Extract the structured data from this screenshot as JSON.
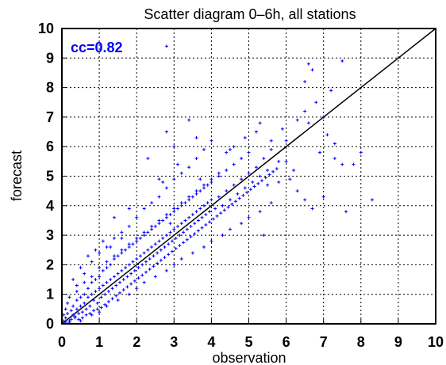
{
  "chart_data": {
    "type": "scatter",
    "title": "Scatter diagram 0–6h, all stations",
    "xlabel": "observation",
    "ylabel": "forecast",
    "xlim": [
      0,
      10
    ],
    "ylim": [
      0,
      10
    ],
    "xticks": [
      "0",
      "1",
      "2",
      "3",
      "4",
      "5",
      "6",
      "7",
      "8",
      "9",
      "10"
    ],
    "yticks": [
      "0",
      "1",
      "2",
      "3",
      "4",
      "5",
      "6",
      "7",
      "8",
      "9",
      "10"
    ],
    "grid": true,
    "reference_line": {
      "from": [
        0,
        0
      ],
      "to": [
        10,
        10
      ]
    },
    "annotation": {
      "text": "cc=0.82",
      "position": "top-left",
      "color": "#0000ff"
    },
    "point_color": "#0000ff",
    "marker": "plus",
    "series": [
      {
        "points": [
          [
            0.1,
            0.2
          ],
          [
            0.15,
            0.35
          ],
          [
            0.2,
            0.1
          ],
          [
            0.25,
            0.45
          ],
          [
            0.3,
            0.3
          ],
          [
            0.3,
            0.6
          ],
          [
            0.35,
            0.2
          ],
          [
            0.4,
            0.5
          ],
          [
            0.4,
            0.8
          ],
          [
            0.45,
            0.35
          ],
          [
            0.5,
            0.6
          ],
          [
            0.5,
            0.9
          ],
          [
            0.55,
            0.4
          ],
          [
            0.6,
            0.7
          ],
          [
            0.6,
            1.0
          ],
          [
            0.65,
            0.5
          ],
          [
            0.7,
            0.9
          ],
          [
            0.7,
            1.2
          ],
          [
            0.75,
            0.6
          ],
          [
            0.8,
            1.0
          ],
          [
            0.8,
            1.4
          ],
          [
            0.85,
            0.8
          ],
          [
            0.9,
            1.1
          ],
          [
            0.9,
            1.5
          ],
          [
            0.95,
            0.7
          ],
          [
            1.0,
            1.2
          ],
          [
            1.0,
            1.6
          ],
          [
            1.05,
            0.9
          ],
          [
            1.1,
            1.3
          ],
          [
            1.1,
            1.8
          ],
          [
            1.15,
            1.0
          ],
          [
            1.2,
            1.4
          ],
          [
            1.2,
            1.9
          ],
          [
            1.25,
            1.1
          ],
          [
            1.3,
            1.5
          ],
          [
            1.3,
            2.0
          ],
          [
            1.35,
            1.2
          ],
          [
            1.4,
            1.6
          ],
          [
            1.4,
            2.2
          ],
          [
            1.45,
            1.3
          ],
          [
            1.5,
            1.7
          ],
          [
            1.5,
            2.3
          ],
          [
            1.55,
            1.4
          ],
          [
            1.6,
            1.8
          ],
          [
            1.6,
            2.4
          ],
          [
            1.65,
            1.5
          ],
          [
            1.7,
            1.9
          ],
          [
            1.7,
            2.5
          ],
          [
            1.75,
            1.6
          ],
          [
            1.8,
            2.0
          ],
          [
            1.8,
            2.6
          ],
          [
            1.85,
            1.7
          ],
          [
            1.9,
            2.1
          ],
          [
            1.9,
            2.7
          ],
          [
            1.95,
            1.8
          ],
          [
            2.0,
            2.2
          ],
          [
            2.0,
            2.8
          ],
          [
            2.05,
            1.9
          ],
          [
            2.1,
            2.3
          ],
          [
            2.1,
            2.9
          ],
          [
            2.15,
            2.0
          ],
          [
            2.2,
            2.4
          ],
          [
            2.2,
            3.0
          ],
          [
            2.25,
            2.1
          ],
          [
            2.3,
            2.5
          ],
          [
            2.3,
            3.1
          ],
          [
            2.35,
            2.2
          ],
          [
            2.4,
            2.6
          ],
          [
            2.4,
            3.2
          ],
          [
            2.45,
            2.3
          ],
          [
            2.5,
            2.7
          ],
          [
            2.5,
            3.3
          ],
          [
            2.55,
            2.4
          ],
          [
            2.6,
            2.8
          ],
          [
            2.6,
            3.4
          ],
          [
            2.65,
            2.5
          ],
          [
            2.7,
            2.9
          ],
          [
            2.7,
            3.5
          ],
          [
            2.75,
            2.6
          ],
          [
            2.8,
            3.0
          ],
          [
            2.8,
            3.6
          ],
          [
            2.85,
            2.7
          ],
          [
            2.9,
            3.1
          ],
          [
            2.9,
            3.7
          ],
          [
            2.95,
            2.8
          ],
          [
            3.0,
            3.2
          ],
          [
            3.0,
            3.8
          ],
          [
            3.05,
            2.9
          ],
          [
            3.1,
            3.3
          ],
          [
            3.1,
            3.9
          ],
          [
            3.15,
            3.0
          ],
          [
            3.2,
            3.4
          ],
          [
            3.2,
            4.0
          ],
          [
            3.25,
            3.1
          ],
          [
            3.3,
            3.5
          ],
          [
            3.3,
            4.1
          ],
          [
            3.35,
            3.2
          ],
          [
            3.4,
            3.6
          ],
          [
            3.4,
            4.2
          ],
          [
            3.45,
            3.3
          ],
          [
            3.5,
            3.7
          ],
          [
            3.5,
            4.3
          ],
          [
            3.55,
            3.4
          ],
          [
            3.6,
            3.8
          ],
          [
            3.6,
            4.4
          ],
          [
            3.65,
            3.5
          ],
          [
            3.7,
            3.9
          ],
          [
            3.7,
            4.5
          ],
          [
            3.75,
            3.6
          ],
          [
            3.8,
            4.0
          ],
          [
            3.8,
            4.6
          ],
          [
            3.85,
            3.7
          ],
          [
            3.9,
            4.1
          ],
          [
            3.9,
            4.7
          ],
          [
            3.95,
            3.8
          ],
          [
            4.0,
            4.2
          ],
          [
            4.0,
            4.8
          ],
          [
            4.1,
            3.9
          ],
          [
            4.2,
            4.3
          ],
          [
            4.2,
            5.0
          ],
          [
            4.3,
            4.0
          ],
          [
            4.4,
            4.5
          ],
          [
            4.4,
            5.2
          ],
          [
            4.5,
            4.2
          ],
          [
            4.6,
            4.7
          ],
          [
            4.6,
            5.4
          ],
          [
            4.7,
            4.4
          ],
          [
            4.8,
            4.9
          ],
          [
            4.8,
            5.6
          ],
          [
            4.9,
            4.6
          ],
          [
            5.0,
            5.1
          ],
          [
            5.0,
            5.8
          ],
          [
            5.1,
            4.8
          ],
          [
            5.2,
            5.3
          ],
          [
            5.3,
            5.0
          ],
          [
            5.4,
            5.6
          ],
          [
            5.5,
            5.2
          ],
          [
            5.6,
            5.9
          ],
          [
            5.8,
            5.5
          ],
          [
            6.0,
            6.2
          ],
          [
            0.5,
            0.1
          ],
          [
            0.8,
            0.3
          ],
          [
            1.0,
            0.4
          ],
          [
            1.2,
            0.6
          ],
          [
            1.5,
            0.8
          ],
          [
            1.8,
            1.0
          ],
          [
            2.0,
            1.2
          ],
          [
            2.2,
            1.4
          ],
          [
            2.5,
            1.6
          ],
          [
            2.8,
            1.8
          ],
          [
            3.0,
            2.0
          ],
          [
            3.2,
            2.2
          ],
          [
            3.5,
            2.4
          ],
          [
            3.8,
            2.6
          ],
          [
            4.0,
            2.8
          ],
          [
            4.3,
            3.0
          ],
          [
            4.5,
            3.2
          ],
          [
            4.8,
            3.4
          ],
          [
            5.0,
            3.6
          ],
          [
            5.3,
            3.8
          ],
          [
            0.2,
            0.9
          ],
          [
            0.4,
            1.3
          ],
          [
            0.6,
            1.7
          ],
          [
            0.8,
            2.1
          ],
          [
            1.0,
            2.4
          ],
          [
            1.2,
            2.6
          ],
          [
            1.4,
            2.9
          ],
          [
            1.6,
            3.1
          ],
          [
            1.8,
            3.3
          ],
          [
            2.0,
            3.6
          ],
          [
            2.2,
            3.9
          ],
          [
            2.4,
            4.1
          ],
          [
            2.6,
            4.3
          ],
          [
            2.8,
            4.6
          ],
          [
            3.0,
            4.9
          ],
          [
            3.2,
            5.1
          ],
          [
            3.4,
            5.3
          ],
          [
            3.6,
            5.6
          ],
          [
            3.8,
            5.9
          ],
          [
            4.0,
            6.2
          ],
          [
            1.3,
            2.6
          ],
          [
            1.6,
            2.9
          ],
          [
            2.9,
            3.4
          ],
          [
            2.7,
            4.8
          ],
          [
            3.1,
            5.4
          ],
          [
            4.5,
            5.9
          ],
          [
            4.9,
            6.3
          ],
          [
            5.3,
            6.8
          ],
          [
            5.6,
            6.2
          ],
          [
            5.9,
            6.6
          ],
          [
            6.0,
            5.5
          ],
          [
            6.2,
            5.2
          ],
          [
            6.1,
            4.9
          ],
          [
            6.3,
            4.5
          ],
          [
            6.5,
            4.2
          ],
          [
            5.8,
            4.8
          ],
          [
            5.5,
            4.7
          ],
          [
            5.6,
            4.1
          ],
          [
            6.7,
            3.9
          ],
          [
            5.4,
            3.0
          ],
          [
            6.3,
            6.9
          ],
          [
            6.5,
            7.2
          ],
          [
            6.8,
            7.5
          ],
          [
            6.6,
            6.8
          ],
          [
            7.0,
            7.0
          ],
          [
            7.1,
            6.4
          ],
          [
            7.3,
            6.1
          ],
          [
            6.9,
            5.8
          ],
          [
            7.3,
            5.6
          ],
          [
            7.5,
            5.4
          ],
          [
            7.0,
            4.3
          ],
          [
            7.6,
            3.8
          ],
          [
            8.3,
            4.2
          ],
          [
            7.8,
            5.4
          ],
          [
            8.0,
            5.8
          ],
          [
            7.2,
            7.9
          ],
          [
            6.5,
            8.2
          ],
          [
            6.6,
            8.8
          ],
          [
            6.7,
            8.6
          ],
          [
            7.5,
            8.9
          ],
          [
            2.8,
            9.4
          ],
          [
            2.3,
            5.6
          ],
          [
            2.8,
            6.5
          ],
          [
            3.4,
            6.9
          ],
          [
            3.0,
            6.0
          ],
          [
            3.6,
            6.3
          ],
          [
            1.4,
            3.6
          ],
          [
            1.8,
            3.9
          ],
          [
            2.6,
            4.9
          ],
          [
            3.7,
            4.9
          ],
          [
            4.4,
            5.8
          ],
          [
            4.6,
            6.0
          ],
          [
            5.2,
            6.5
          ],
          [
            0.3,
            1.5
          ],
          [
            0.5,
            1.9
          ],
          [
            0.7,
            2.3
          ],
          [
            0.9,
            2.5
          ],
          [
            1.1,
            2.8
          ],
          [
            0.1,
            0.05
          ],
          [
            0.2,
            0.05
          ],
          [
            0.05,
            0.1
          ],
          [
            0.05,
            0.3
          ],
          [
            0.1,
            0.5
          ],
          [
            0.15,
            0.7
          ],
          [
            0.25,
            0.15
          ],
          [
            0.35,
            0.25
          ],
          [
            0.45,
            0.15
          ],
          [
            0.55,
            0.2
          ],
          [
            0.65,
            0.3
          ],
          [
            0.75,
            0.35
          ],
          [
            0.85,
            0.45
          ],
          [
            0.95,
            0.5
          ],
          [
            1.05,
            0.55
          ],
          [
            1.15,
            0.65
          ],
          [
            1.25,
            0.75
          ],
          [
            1.35,
            0.85
          ],
          [
            1.45,
            0.95
          ],
          [
            1.55,
            1.05
          ],
          [
            1.65,
            1.15
          ],
          [
            1.75,
            1.25
          ],
          [
            1.85,
            1.35
          ],
          [
            1.95,
            1.45
          ],
          [
            2.05,
            1.55
          ],
          [
            2.15,
            1.65
          ],
          [
            2.25,
            1.75
          ],
          [
            2.35,
            1.85
          ],
          [
            2.45,
            1.95
          ],
          [
            2.55,
            2.05
          ],
          [
            2.65,
            2.15
          ],
          [
            2.75,
            2.25
          ],
          [
            2.85,
            2.35
          ],
          [
            2.95,
            2.45
          ],
          [
            3.05,
            2.55
          ],
          [
            3.15,
            2.65
          ],
          [
            3.25,
            2.75
          ],
          [
            3.35,
            2.85
          ],
          [
            3.45,
            2.95
          ],
          [
            3.55,
            3.05
          ],
          [
            3.65,
            3.15
          ],
          [
            3.75,
            3.25
          ],
          [
            3.85,
            3.35
          ],
          [
            3.95,
            3.45
          ],
          [
            4.05,
            3.55
          ],
          [
            4.15,
            3.65
          ],
          [
            4.25,
            3.75
          ],
          [
            4.35,
            3.85
          ],
          [
            4.45,
            3.95
          ],
          [
            4.55,
            4.05
          ],
          [
            4.65,
            4.15
          ],
          [
            4.75,
            4.25
          ],
          [
            4.85,
            4.35
          ],
          [
            4.95,
            4.45
          ],
          [
            5.05,
            4.55
          ],
          [
            5.15,
            4.65
          ],
          [
            5.25,
            4.75
          ],
          [
            5.35,
            4.85
          ],
          [
            5.45,
            4.95
          ],
          [
            5.55,
            5.05
          ],
          [
            5.65,
            5.15
          ],
          [
            5.75,
            5.25
          ],
          [
            0.4,
            1.1
          ],
          [
            0.6,
            1.4
          ],
          [
            0.8,
            1.6
          ],
          [
            1.0,
            1.9
          ],
          [
            1.2,
            2.1
          ],
          [
            1.4,
            2.3
          ],
          [
            1.6,
            2.5
          ],
          [
            1.8,
            2.7
          ],
          [
            2.0,
            2.9
          ],
          [
            2.2,
            3.1
          ],
          [
            2.4,
            3.3
          ],
          [
            2.6,
            3.5
          ],
          [
            2.8,
            3.7
          ],
          [
            3.0,
            3.9
          ],
          [
            3.2,
            4.1
          ],
          [
            3.4,
            4.3
          ],
          [
            3.6,
            4.5
          ],
          [
            3.8,
            4.7
          ],
          [
            4.0,
            4.9
          ],
          [
            4.2,
            5.1
          ]
        ]
      }
    ]
  }
}
